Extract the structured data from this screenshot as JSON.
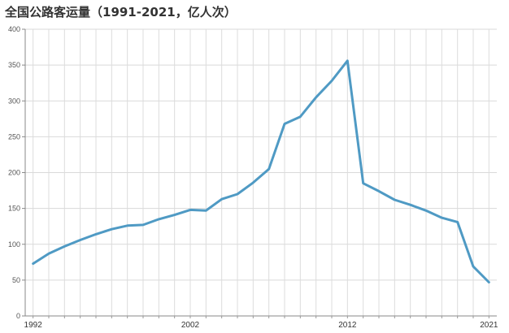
{
  "title": "全国公路客运量（1991-2021，亿人次）",
  "chart_data": {
    "type": "line",
    "title": "全国公路客运量（1991-2021，亿人次）",
    "xlabel": "",
    "ylabel": "",
    "grid": true,
    "legend": "none",
    "line_color": "#4f9ac4",
    "xlim": [
      1991.5,
      2021.5
    ],
    "ylim": [
      0,
      400
    ],
    "yticks": [
      0,
      50,
      100,
      150,
      200,
      250,
      300,
      350,
      400
    ],
    "xtick_labels": [
      {
        "x": 1992,
        "label": "1992"
      },
      {
        "x": 2002,
        "label": "2002"
      },
      {
        "x": 2012,
        "label": "2012"
      },
      {
        "x": 2021,
        "label": "2021"
      }
    ],
    "series": [
      {
        "x": [
          1992,
          1993,
          1994,
          1995,
          1996,
          1997,
          1998,
          1999,
          2000,
          2001,
          2002,
          2003,
          2004,
          2005,
          2006,
          2007,
          2008,
          2009,
          2010,
          2011,
          2012,
          2013,
          2014,
          2015,
          2016,
          2017,
          2018,
          2019,
          2020,
          2021
        ],
        "values": [
          73,
          87,
          97,
          106,
          114,
          121,
          126,
          127,
          135,
          141,
          148,
          147,
          163,
          170,
          186,
          205,
          268,
          278,
          305,
          328,
          356,
          185,
          174,
          162,
          155,
          147,
          137,
          131,
          69,
          47
        ]
      }
    ]
  }
}
